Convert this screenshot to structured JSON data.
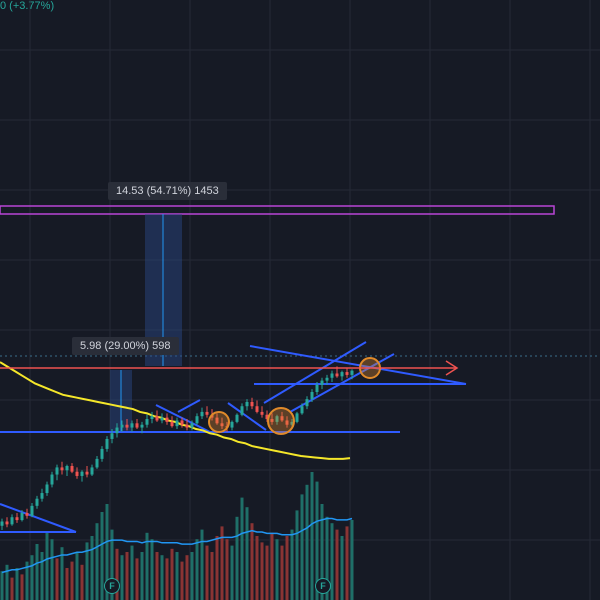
{
  "header": {
    "change_text": "0 (+3.77%)"
  },
  "measurements": [
    {
      "text": "14.53 (54.71%) 1453"
    },
    {
      "text": "5.98 (29.00%) 598"
    }
  ],
  "earnings_badges": [
    "F",
    "F"
  ],
  "colors": {
    "background": "#161a25",
    "grid": "#252a36",
    "up": "#26a69a",
    "down": "#ef5350",
    "ma_line": "#f5e72a",
    "volume_ma": "#2196f3",
    "trendlines": "#2f5bff",
    "target_zone": "#b845d6",
    "price_arrow": "#ef5350",
    "measure_fill": "#2a4a8a",
    "pattern_circle": "#e08a2a"
  },
  "chart_data": {
    "type": "candlestick",
    "title": "",
    "xlabel": "",
    "ylabel": "",
    "ohlc": [
      [
        10.0,
        10.5,
        9.7,
        10.3
      ],
      [
        10.3,
        10.6,
        9.9,
        10.1
      ],
      [
        10.1,
        10.8,
        10.0,
        10.6
      ],
      [
        10.6,
        10.9,
        10.2,
        10.4
      ],
      [
        10.4,
        11.1,
        10.3,
        10.9
      ],
      [
        10.9,
        11.2,
        10.5,
        10.7
      ],
      [
        10.7,
        11.6,
        10.6,
        11.4
      ],
      [
        11.4,
        12.1,
        11.2,
        11.9
      ],
      [
        11.9,
        12.6,
        11.7,
        12.3
      ],
      [
        12.3,
        13.1,
        12.1,
        12.9
      ],
      [
        12.9,
        13.8,
        12.7,
        13.6
      ],
      [
        13.6,
        14.3,
        13.2,
        14.1
      ],
      [
        14.1,
        14.5,
        13.6,
        13.9
      ],
      [
        13.9,
        14.3,
        13.5,
        14.2
      ],
      [
        14.2,
        14.4,
        13.7,
        13.8
      ],
      [
        13.8,
        14.1,
        13.3,
        13.5
      ],
      [
        13.5,
        13.9,
        13.1,
        13.8
      ],
      [
        13.8,
        14.2,
        13.4,
        13.6
      ],
      [
        13.6,
        14.3,
        13.5,
        14.1
      ],
      [
        14.1,
        14.9,
        14.0,
        14.7
      ],
      [
        14.7,
        15.6,
        14.5,
        15.4
      ],
      [
        15.4,
        16.3,
        15.2,
        16.1
      ],
      [
        16.1,
        16.8,
        15.8,
        16.5
      ],
      [
        16.5,
        17.2,
        16.2,
        16.9
      ],
      [
        16.9,
        17.4,
        16.6,
        17.1
      ],
      [
        17.1,
        17.5,
        16.7,
        16.9
      ],
      [
        16.9,
        17.4,
        16.6,
        17.2
      ],
      [
        17.2,
        17.5,
        16.8,
        16.9
      ],
      [
        16.9,
        17.3,
        16.5,
        17.1
      ],
      [
        17.1,
        17.8,
        16.9,
        17.5
      ],
      [
        17.5,
        18.0,
        17.2,
        17.7
      ],
      [
        17.7,
        18.1,
        17.3,
        17.4
      ],
      [
        17.4,
        17.9,
        17.2,
        17.6
      ],
      [
        17.6,
        17.9,
        17.1,
        17.3
      ],
      [
        17.3,
        17.7,
        16.9,
        17.0
      ],
      [
        17.0,
        17.6,
        16.8,
        17.4
      ],
      [
        17.4,
        17.6,
        16.9,
        17.1
      ],
      [
        17.1,
        17.5,
        16.7,
        16.9
      ],
      [
        16.9,
        17.4,
        16.7,
        17.2
      ],
      [
        17.2,
        17.9,
        17.1,
        17.7
      ],
      [
        17.7,
        18.3,
        17.5,
        18.0
      ],
      [
        18.0,
        18.4,
        17.6,
        17.8
      ],
      [
        17.8,
        18.2,
        17.4,
        17.6
      ],
      [
        17.6,
        17.9,
        17.1,
        17.2
      ],
      [
        17.2,
        17.6,
        16.8,
        17.0
      ],
      [
        17.0,
        17.3,
        16.6,
        16.9
      ],
      [
        16.9,
        17.4,
        16.7,
        17.3
      ],
      [
        17.3,
        17.9,
        17.2,
        17.8
      ],
      [
        17.8,
        18.6,
        17.7,
        18.4
      ],
      [
        18.4,
        18.9,
        18.1,
        18.7
      ],
      [
        18.7,
        19.0,
        18.2,
        18.4
      ],
      [
        18.4,
        18.8,
        17.9,
        18.0
      ],
      [
        18.0,
        18.4,
        17.6,
        17.8
      ],
      [
        17.8,
        18.1,
        17.3,
        17.5
      ],
      [
        17.5,
        17.9,
        17.1,
        17.3
      ],
      [
        17.3,
        17.8,
        17.1,
        17.7
      ],
      [
        17.7,
        18.0,
        17.3,
        17.4
      ],
      [
        17.4,
        17.7,
        16.9,
        17.1
      ],
      [
        17.1,
        17.5,
        16.8,
        17.3
      ],
      [
        17.3,
        18.0,
        17.2,
        17.9
      ],
      [
        17.9,
        18.6,
        17.8,
        18.4
      ],
      [
        18.4,
        19.1,
        18.2,
        18.9
      ],
      [
        18.9,
        19.6,
        18.7,
        19.4
      ],
      [
        19.4,
        20.1,
        19.2,
        19.9
      ],
      [
        19.9,
        20.4,
        19.6,
        20.2
      ],
      [
        20.2,
        20.6,
        19.9,
        20.4
      ],
      [
        20.4,
        20.9,
        20.1,
        20.7
      ],
      [
        20.7,
        21.2,
        20.4,
        20.5
      ],
      [
        20.5,
        20.9,
        20.2,
        20.8
      ],
      [
        20.8,
        21.1,
        20.4,
        20.6
      ],
      [
        20.6,
        21.0,
        20.3,
        20.9
      ]
    ],
    "moving_average": [
      21.5,
      21.2,
      20.9,
      20.6,
      20.3,
      20.0,
      19.8,
      19.6,
      19.4,
      19.2,
      19.1,
      19.0,
      18.9,
      18.8,
      18.7,
      18.6,
      18.5,
      18.4,
      18.3,
      18.2,
      18.0,
      17.9,
      17.7,
      17.6,
      17.4,
      17.3,
      17.1,
      17.0,
      16.8,
      16.7,
      16.5,
      16.4,
      16.2,
      16.1,
      15.9,
      15.8,
      15.6,
      15.5,
      15.4,
      15.3,
      15.2,
      15.1,
      15.0,
      14.9,
      14.85,
      14.8,
      14.75,
      14.7,
      14.7,
      14.7,
      14.75
    ],
    "volume_up_down": [
      1,
      1,
      0,
      1,
      0,
      1,
      1,
      1,
      1,
      1,
      1,
      0,
      1,
      0,
      0,
      1,
      0,
      1,
      1,
      1,
      1,
      1,
      1,
      0,
      1,
      0,
      1,
      0,
      1,
      1,
      1,
      0,
      1,
      0,
      0,
      1,
      0,
      0,
      1,
      1,
      1,
      0,
      0,
      0,
      0,
      0,
      1,
      1,
      1,
      1,
      0,
      0,
      0,
      0,
      0,
      1,
      0,
      0,
      1,
      1,
      1,
      1,
      1,
      1,
      1,
      1,
      1,
      0,
      1,
      0,
      1
    ],
    "volume": [
      18,
      22,
      14,
      20,
      16,
      24,
      28,
      35,
      30,
      42,
      38,
      26,
      33,
      20,
      24,
      30,
      22,
      36,
      40,
      48,
      55,
      60,
      44,
      32,
      28,
      30,
      34,
      26,
      30,
      42,
      38,
      30,
      28,
      26,
      32,
      30,
      24,
      28,
      30,
      38,
      44,
      34,
      30,
      40,
      46,
      38,
      34,
      52,
      64,
      58,
      48,
      40,
      36,
      34,
      42,
      38,
      34,
      40,
      44,
      56,
      66,
      72,
      80,
      74,
      60,
      52,
      48,
      44,
      40,
      46,
      50
    ],
    "volume_ma": [
      10,
      11,
      12,
      12,
      13,
      14,
      15,
      17,
      18,
      20,
      21,
      22,
      23,
      23,
      24,
      25,
      25,
      26,
      27,
      29,
      31,
      33,
      34,
      34,
      34,
      33,
      33,
      33,
      32,
      33,
      33,
      33,
      32,
      32,
      32,
      32,
      31,
      31,
      31,
      32,
      33,
      33,
      34,
      35,
      36,
      36,
      36,
      37,
      39,
      40,
      41,
      40,
      40,
      39,
      39,
      39,
      38,
      38,
      38,
      39,
      41,
      43,
      46,
      48,
      49,
      50,
      50,
      49,
      49,
      49,
      50
    ],
    "annotations": [
      {
        "type": "price_range",
        "label_index": 0,
        "change": 14.53,
        "percent": 54.71,
        "ticks": 1453
      },
      {
        "type": "price_range",
        "label_index": 1,
        "change": 5.98,
        "percent": 29.0,
        "ticks": 598
      }
    ]
  }
}
